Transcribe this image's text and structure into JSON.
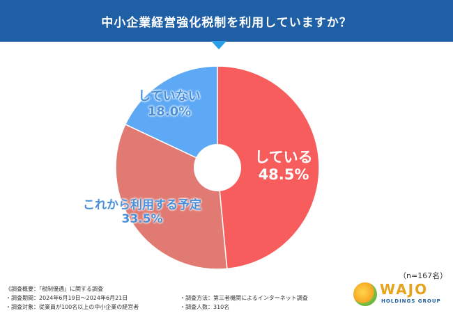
{
  "chart_data": {
    "type": "pie",
    "title": "中小企業経営強化税制を利用していますか？",
    "categories": [
      "している",
      "これから利用する予定",
      "していない"
    ],
    "values": [
      48.5,
      33.5,
      18.0
    ],
    "value_labels": [
      "48.5%",
      "33.5%",
      "18.0%"
    ],
    "colors": [
      "#f75d5d",
      "#e07a72",
      "#5ea9f5"
    ],
    "donut_hole": true,
    "sample_size": "（n=167名）"
  },
  "notes": {
    "left": [
      "《調査概要：「税制優遇」に関する調査",
      "・調査期間：2024年6月19日〜2024年6月21日",
      "・調査対象：従業員が100名以上の中小企業の経営者"
    ],
    "right": [
      "・調査方法：第三者機関によるインターネット調査",
      "・調査人数：310名"
    ]
  },
  "logo": {
    "word": "WAJO",
    "sub": "HOLDINGS GROUP"
  }
}
